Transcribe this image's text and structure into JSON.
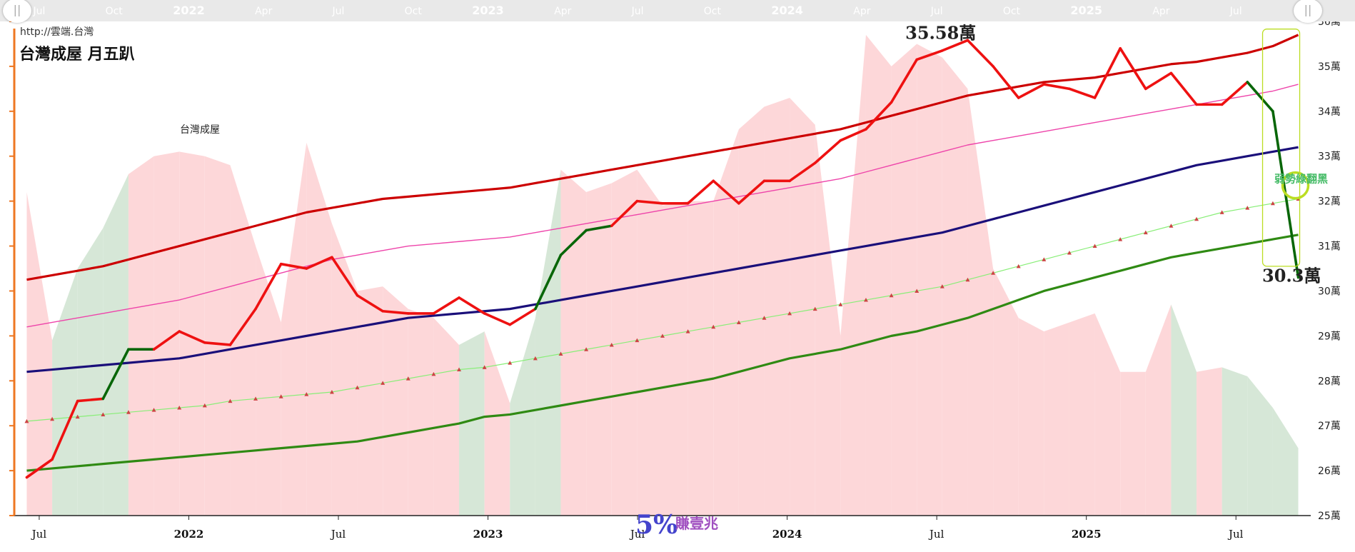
{
  "url_text": "http://雲端.台灣",
  "title": "台灣成屋 月五趴",
  "navigator": {
    "labels": [
      "Jul",
      "Oct",
      "2022",
      "Apr",
      "Jul",
      "Oct",
      "2023",
      "Apr",
      "Jul",
      "Oct",
      "2024",
      "Apr",
      "Jul",
      "Oct",
      "2025",
      "Apr",
      "Jul"
    ],
    "left_handle_icon": "pause-grip-icon",
    "right_handle_icon": "pause-grip-icon"
  },
  "colors": {
    "bg_up": "#fdd7d9",
    "bg_down": "#d6e7d7",
    "price_up": "#ee1111",
    "price_down": "#086608",
    "top_band": "#cc0000",
    "upper_thin": "#ee44aa",
    "mid_line": "#1a0f7a",
    "trend_line": "#88ee77",
    "trend_marker": "#cc4444",
    "bottom_band": "#2f8a13",
    "axis_left": "#ee7722",
    "watermark_pct": "#4444cc",
    "watermark_text": "#a050c0",
    "highlight": "#bbdd22",
    "note_text": "#44bb66"
  },
  "chart_data": {
    "type": "line",
    "title": "台灣成屋 月五趴",
    "x_start": "2021-06",
    "x_end": "2025-10",
    "yaxis": {
      "min": 25,
      "max": 36,
      "side": "right",
      "unit": "萬",
      "ticks": [
        "25萬",
        "26萬",
        "27萬",
        "28萬",
        "29萬",
        "30萬",
        "31萬",
        "32萬",
        "33萬",
        "34萬",
        "35萬",
        "36萬"
      ]
    },
    "xaxis": {
      "ticks": [
        "Jul",
        "2022",
        "Jul",
        "2023",
        "Jul",
        "2024",
        "Jul",
        "2025",
        "Jul"
      ],
      "tick_dates": [
        "2021-07",
        "2022-01",
        "2022-07",
        "2023-01",
        "2023-07",
        "2024-01",
        "2024-07",
        "2025-01",
        "2025-07"
      ],
      "bold": [
        "2022",
        "2023",
        "2024",
        "2025"
      ]
    },
    "background_label": "台灣成屋",
    "background_values": [
      32.2,
      28.9,
      30.5,
      31.4,
      32.6,
      33.0,
      33.1,
      33.0,
      32.8,
      31.0,
      29.3,
      33.3,
      31.5,
      30.0,
      30.1,
      29.6,
      29.4,
      28.8,
      29.1,
      27.5,
      29.4,
      32.7,
      32.2,
      32.4,
      32.7,
      31.9,
      32.0,
      32.0,
      33.6,
      34.1,
      34.3,
      33.7,
      29.0,
      35.7,
      35.0,
      35.5,
      35.2,
      34.5,
      30.5,
      29.4,
      29.1,
      29.3,
      29.5,
      28.2,
      28.2,
      29.7,
      28.2,
      28.3,
      28.1,
      27.4,
      26.5
    ],
    "background_down": [
      false,
      true,
      true,
      true,
      false,
      false,
      false,
      false,
      false,
      false,
      false,
      false,
      false,
      false,
      false,
      false,
      false,
      true,
      false,
      true,
      true,
      false,
      false,
      false,
      false,
      false,
      false,
      false,
      false,
      false,
      false,
      false,
      false,
      false,
      false,
      false,
      false,
      false,
      false,
      false,
      false,
      false,
      false,
      false,
      false,
      true,
      false,
      true,
      true,
      true,
      true
    ],
    "price": [
      25.85,
      26.25,
      27.55,
      27.6,
      28.7,
      28.7,
      29.1,
      28.85,
      28.8,
      29.6,
      30.6,
      30.5,
      30.75,
      29.9,
      29.55,
      29.5,
      29.5,
      29.85,
      29.5,
      29.25,
      29.6,
      30.8,
      31.35,
      31.45,
      32.0,
      31.95,
      31.95,
      32.45,
      31.95,
      32.45,
      32.45,
      32.85,
      33.35,
      33.6,
      34.2,
      35.15,
      35.35,
      35.58,
      35.0,
      34.3,
      34.6,
      34.5,
      34.3,
      35.4,
      34.5,
      34.85,
      34.15,
      34.15,
      34.65,
      34.0,
      30.3
    ],
    "price_down": [
      false,
      false,
      false,
      true,
      true,
      false,
      false,
      false,
      false,
      false,
      false,
      false,
      false,
      false,
      false,
      false,
      false,
      false,
      false,
      false,
      true,
      true,
      true,
      false,
      false,
      false,
      false,
      false,
      false,
      false,
      false,
      false,
      false,
      false,
      false,
      false,
      false,
      false,
      false,
      false,
      false,
      false,
      false,
      false,
      false,
      false,
      false,
      false,
      true,
      true,
      true
    ],
    "series": [
      {
        "name": "top",
        "values": [
          30.25,
          30.35,
          30.45,
          30.55,
          30.7,
          30.85,
          31.0,
          31.15,
          31.3,
          31.45,
          31.6,
          31.75,
          31.85,
          31.95,
          32.05,
          32.1,
          32.15,
          32.2,
          32.25,
          32.3,
          32.4,
          32.5,
          32.6,
          32.7,
          32.8,
          32.9,
          33.0,
          33.1,
          33.2,
          33.3,
          33.4,
          33.5,
          33.6,
          33.75,
          33.9,
          34.05,
          34.2,
          34.35,
          34.45,
          34.55,
          34.65,
          34.7,
          34.75,
          34.85,
          34.95,
          35.05,
          35.1,
          35.2,
          35.3,
          35.45,
          35.7
        ]
      },
      {
        "name": "upper",
        "values": [
          29.2,
          29.3,
          29.4,
          29.5,
          29.6,
          29.7,
          29.8,
          29.95,
          30.1,
          30.25,
          30.4,
          30.55,
          30.7,
          30.8,
          30.9,
          31.0,
          31.05,
          31.1,
          31.15,
          31.2,
          31.3,
          31.4,
          31.5,
          31.6,
          31.7,
          31.8,
          31.9,
          32.0,
          32.1,
          32.2,
          32.3,
          32.4,
          32.5,
          32.65,
          32.8,
          32.95,
          33.1,
          33.25,
          33.35,
          33.45,
          33.55,
          33.65,
          33.75,
          33.85,
          33.95,
          34.05,
          34.15,
          34.25,
          34.35,
          34.45,
          34.6
        ]
      },
      {
        "name": "mid",
        "values": [
          28.2,
          28.25,
          28.3,
          28.35,
          28.4,
          28.45,
          28.5,
          28.6,
          28.7,
          28.8,
          28.9,
          29.0,
          29.1,
          29.2,
          29.3,
          29.4,
          29.45,
          29.5,
          29.55,
          29.6,
          29.7,
          29.8,
          29.9,
          30.0,
          30.1,
          30.2,
          30.3,
          30.4,
          30.5,
          30.6,
          30.7,
          30.8,
          30.9,
          31.0,
          31.1,
          31.2,
          31.3,
          31.45,
          31.6,
          31.75,
          31.9,
          32.05,
          32.2,
          32.35,
          32.5,
          32.65,
          32.8,
          32.9,
          33.0,
          33.1,
          33.2
        ]
      },
      {
        "name": "trend",
        "values": [
          27.1,
          27.15,
          27.2,
          27.25,
          27.3,
          27.35,
          27.4,
          27.45,
          27.55,
          27.6,
          27.65,
          27.7,
          27.75,
          27.85,
          27.95,
          28.05,
          28.15,
          28.25,
          28.3,
          28.4,
          28.5,
          28.6,
          28.7,
          28.8,
          28.9,
          29.0,
          29.1,
          29.2,
          29.3,
          29.4,
          29.5,
          29.6,
          29.7,
          29.8,
          29.9,
          30.0,
          30.1,
          30.25,
          30.4,
          30.55,
          30.7,
          30.85,
          31.0,
          31.15,
          31.3,
          31.45,
          31.6,
          31.75,
          31.85,
          31.95,
          32.05
        ]
      },
      {
        "name": "bottom",
        "values": [
          26.0,
          26.05,
          26.1,
          26.15,
          26.2,
          26.25,
          26.3,
          26.35,
          26.4,
          26.45,
          26.5,
          26.55,
          26.6,
          26.65,
          26.75,
          26.85,
          26.95,
          27.05,
          27.2,
          27.25,
          27.35,
          27.45,
          27.55,
          27.65,
          27.75,
          27.85,
          27.95,
          28.05,
          28.2,
          28.35,
          28.5,
          28.6,
          28.7,
          28.85,
          29.0,
          29.1,
          29.25,
          29.4,
          29.6,
          29.8,
          30.0,
          30.15,
          30.3,
          30.45,
          30.6,
          30.75,
          30.85,
          30.95,
          31.05,
          31.15,
          31.25
        ]
      }
    ],
    "annotations": [
      {
        "text": "35.58萬",
        "date": "2024-07",
        "value": 35.58
      },
      {
        "text": "30.3萬",
        "date": "2025-10",
        "value": 30.3
      },
      {
        "text": "弱勢綠翻黑",
        "date": "2025-10",
        "value": 32.45
      }
    ]
  },
  "watermark": {
    "pct": "5%",
    "text": "賺壹兆"
  }
}
